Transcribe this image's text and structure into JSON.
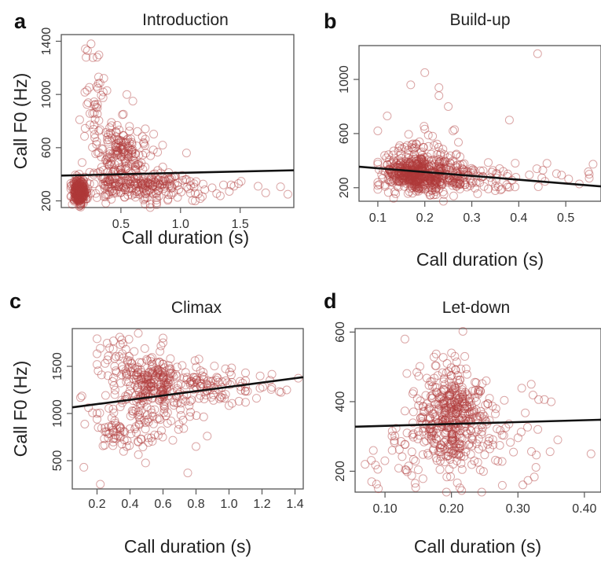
{
  "figure": {
    "background": "#ffffff",
    "point_color": "#b03a3a",
    "line_color": "#111111"
  },
  "chart_data": [
    {
      "id": "a",
      "letter": "a",
      "type": "scatter",
      "title": "Introduction",
      "xlabel": "Call duration (s)",
      "ylabel": "Call F0 (Hz)",
      "xlim": [
        0.0,
        1.95
      ],
      "ylim": [
        150,
        1450
      ],
      "xticks": [
        0.5,
        1.0,
        1.5
      ],
      "xtick_labels": [
        "0.5",
        "1.0",
        "1.5"
      ],
      "yticks": [
        200,
        600,
        1000,
        1400
      ],
      "ytick_labels": [
        "200",
        "600",
        "1000",
        "1400"
      ],
      "grid": false,
      "legend": "none",
      "marker": "open-circle",
      "regression_line": {
        "x": [
          0.0,
          1.95
        ],
        "y": [
          390,
          430
        ]
      },
      "point_clusters": [
        {
          "x_mean": 0.15,
          "x_sd": 0.03,
          "y_mean": 270,
          "y_sd": 45,
          "n": 260,
          "x_min": 0.08,
          "x_max": 0.3
        },
        {
          "x_mean": 0.5,
          "x_sd": 0.12,
          "y_mean": 560,
          "y_sd": 110,
          "n": 160,
          "x_min": 0.2,
          "x_max": 1.0
        },
        {
          "x_mean": 0.6,
          "x_sd": 0.22,
          "y_mean": 320,
          "y_sd": 60,
          "n": 230,
          "x_min": 0.15,
          "x_max": 1.3
        },
        {
          "x_mean": 0.3,
          "x_sd": 0.07,
          "y_mean": 900,
          "y_sd": 170,
          "n": 45,
          "x_min": 0.15,
          "x_max": 0.6
        },
        {
          "x_mean": 1.2,
          "x_sd": 0.3,
          "y_mean": 290,
          "y_sd": 50,
          "n": 40,
          "x_min": 0.8,
          "x_max": 1.9
        }
      ],
      "points": [
        {
          "x": 0.25,
          "y": 1380
        },
        {
          "x": 0.22,
          "y": 1330
        },
        {
          "x": 0.3,
          "y": 1280
        },
        {
          "x": 0.55,
          "y": 1000
        },
        {
          "x": 0.6,
          "y": 950
        },
        {
          "x": 1.05,
          "y": 560
        },
        {
          "x": 1.65,
          "y": 310
        },
        {
          "x": 1.9,
          "y": 250
        }
      ]
    },
    {
      "id": "b",
      "letter": "b",
      "type": "scatter",
      "title": "Build-up",
      "xlabel": "Call duration (s)",
      "ylabel": "",
      "xlim": [
        0.06,
        0.575
      ],
      "ylim": [
        100,
        1250
      ],
      "xticks": [
        0.1,
        0.2,
        0.3,
        0.4,
        0.5
      ],
      "xtick_labels": [
        "0.1",
        "0.2",
        "0.3",
        "0.4",
        "0.5"
      ],
      "yticks": [
        200,
        600,
        1000
      ],
      "ytick_labels": [
        "200",
        "600",
        "1000"
      ],
      "grid": false,
      "legend": "none",
      "marker": "open-circle",
      "regression_line": {
        "x": [
          0.06,
          0.575
        ],
        "y": [
          355,
          210
        ]
      },
      "point_clusters": [
        {
          "x_mean": 0.18,
          "x_sd": 0.035,
          "y_mean": 300,
          "y_sd": 70,
          "n": 480,
          "x_min": 0.1,
          "x_max": 0.3
        },
        {
          "x_mean": 0.26,
          "x_sd": 0.05,
          "y_mean": 280,
          "y_sd": 60,
          "n": 150,
          "x_min": 0.18,
          "x_max": 0.42
        },
        {
          "x_mean": 0.2,
          "x_sd": 0.04,
          "y_mean": 480,
          "y_sd": 70,
          "n": 40,
          "x_min": 0.1,
          "x_max": 0.3
        },
        {
          "x_mean": 0.42,
          "x_sd": 0.07,
          "y_mean": 260,
          "y_sd": 50,
          "n": 25,
          "x_min": 0.35,
          "x_max": 0.57
        }
      ],
      "points": [
        {
          "x": 0.44,
          "y": 1190
        },
        {
          "x": 0.2,
          "y": 1050
        },
        {
          "x": 0.17,
          "y": 960
        },
        {
          "x": 0.23,
          "y": 940
        },
        {
          "x": 0.23,
          "y": 880
        },
        {
          "x": 0.25,
          "y": 800
        },
        {
          "x": 0.12,
          "y": 730
        },
        {
          "x": 0.38,
          "y": 700
        },
        {
          "x": 0.1,
          "y": 620
        },
        {
          "x": 0.26,
          "y": 620
        },
        {
          "x": 0.46,
          "y": 380
        },
        {
          "x": 0.55,
          "y": 300
        },
        {
          "x": 0.55,
          "y": 270
        }
      ]
    },
    {
      "id": "c",
      "letter": "c",
      "type": "scatter",
      "title": "Climax",
      "xlabel": "Call duration (s)",
      "ylabel": "Call F0 (Hz)",
      "xlim": [
        0.05,
        1.45
      ],
      "ylim": [
        200,
        1900
      ],
      "xticks": [
        0.2,
        0.4,
        0.6,
        0.8,
        1.0,
        1.2,
        1.4
      ],
      "xtick_labels": [
        "0.2",
        "0.4",
        "0.6",
        "0.8",
        "1.0",
        "1.2",
        "1.4"
      ],
      "yticks": [
        500,
        1000,
        1500
      ],
      "ytick_labels": [
        "500",
        "1000",
        "1500"
      ],
      "grid": false,
      "legend": "none",
      "marker": "open-circle",
      "regression_line": {
        "x": [
          0.05,
          1.45
        ],
        "y": [
          1065,
          1385
        ]
      },
      "point_clusters": [
        {
          "x_mean": 0.55,
          "x_sd": 0.1,
          "y_mean": 1330,
          "y_sd": 140,
          "n": 190,
          "x_min": 0.3,
          "x_max": 0.8
        },
        {
          "x_mean": 0.85,
          "x_sd": 0.15,
          "y_mean": 1300,
          "y_sd": 100,
          "n": 90,
          "x_min": 0.6,
          "x_max": 1.1
        },
        {
          "x_mean": 0.5,
          "x_sd": 0.2,
          "y_mean": 1050,
          "y_sd": 200,
          "n": 120,
          "x_min": 0.1,
          "x_max": 1.0
        },
        {
          "x_mean": 0.35,
          "x_sd": 0.08,
          "y_mean": 780,
          "y_sd": 90,
          "n": 45,
          "x_min": 0.2,
          "x_max": 0.6
        },
        {
          "x_mean": 0.3,
          "x_sd": 0.08,
          "y_mean": 1550,
          "y_sd": 130,
          "n": 35,
          "x_min": 0.2,
          "x_max": 0.65
        },
        {
          "x_mean": 1.2,
          "x_sd": 0.12,
          "y_mean": 1280,
          "y_sd": 70,
          "n": 15,
          "x_min": 1.0,
          "x_max": 1.42
        }
      ],
      "points": [
        {
          "x": 0.45,
          "y": 1850
        },
        {
          "x": 0.6,
          "y": 1800
        },
        {
          "x": 0.35,
          "y": 1780
        },
        {
          "x": 0.6,
          "y": 1750
        },
        {
          "x": 0.3,
          "y": 1770
        },
        {
          "x": 0.22,
          "y": 250
        },
        {
          "x": 0.12,
          "y": 430
        },
        {
          "x": 0.75,
          "y": 370
        },
        {
          "x": 0.8,
          "y": 650
        },
        {
          "x": 1.35,
          "y": 1250
        }
      ]
    },
    {
      "id": "d",
      "letter": "d",
      "type": "scatter",
      "title": "Let-down",
      "xlabel": "Call duration (s)",
      "ylabel": "",
      "xlim": [
        0.055,
        0.425
      ],
      "ylim": [
        140,
        610
      ],
      "xticks": [
        0.1,
        0.2,
        0.3,
        0.4
      ],
      "xtick_labels": [
        "0.10",
        "0.20",
        "0.30",
        "0.40"
      ],
      "yticks": [
        200,
        400,
        600
      ],
      "ytick_labels": [
        "200",
        "400",
        "600"
      ],
      "grid": false,
      "legend": "none",
      "marker": "open-circle",
      "regression_line": {
        "x": [
          0.055,
          0.425
        ],
        "y": [
          328,
          348
        ]
      },
      "point_clusters": [
        {
          "x_mean": 0.2,
          "x_sd": 0.025,
          "y_mean": 350,
          "y_sd": 75,
          "n": 380,
          "x_min": 0.13,
          "x_max": 0.27
        },
        {
          "x_mean": 0.24,
          "x_sd": 0.045,
          "y_mean": 320,
          "y_sd": 70,
          "n": 110,
          "x_min": 0.15,
          "x_max": 0.35
        },
        {
          "x_mean": 0.12,
          "x_sd": 0.03,
          "y_mean": 240,
          "y_sd": 50,
          "n": 30,
          "x_min": 0.07,
          "x_max": 0.16
        }
      ],
      "points": [
        {
          "x": 0.13,
          "y": 580
        },
        {
          "x": 0.2,
          "y": 540
        },
        {
          "x": 0.22,
          "y": 530
        },
        {
          "x": 0.08,
          "y": 170
        },
        {
          "x": 0.09,
          "y": 150
        },
        {
          "x": 0.07,
          "y": 220
        },
        {
          "x": 0.41,
          "y": 250
        },
        {
          "x": 0.36,
          "y": 290
        },
        {
          "x": 0.33,
          "y": 320
        },
        {
          "x": 0.32,
          "y": 450
        }
      ]
    }
  ]
}
